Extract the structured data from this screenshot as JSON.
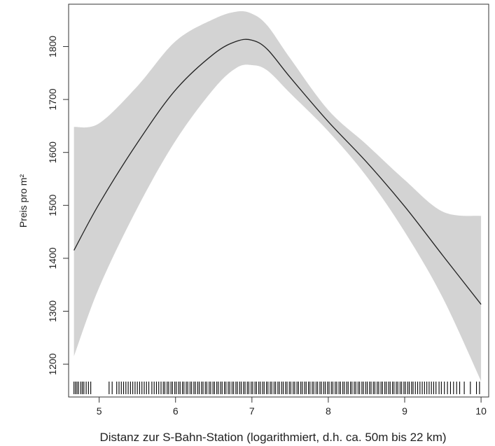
{
  "chart_data": {
    "type": "line",
    "title": "",
    "xlabel": "Distanz zur S-Bahn-Station (logarithmiert, d.h. ca. 50m bis 22 km)",
    "ylabel": "Preis pro m²",
    "xlim": [
      4.6,
      10.1
    ],
    "ylim": [
      1138,
      1880
    ],
    "x_ticks": [
      5,
      6,
      7,
      8,
      9,
      10
    ],
    "y_ticks": [
      1200,
      1300,
      1400,
      1500,
      1600,
      1700,
      1800
    ],
    "grid": false,
    "band_color": "#d3d3d3",
    "line_color": "#222222",
    "series": [
      {
        "x": [
          4.67,
          5.0,
          5.5,
          6.0,
          6.5,
          6.8,
          7.0,
          7.2,
          7.5,
          8.0,
          8.5,
          9.0,
          9.5,
          10.0
        ],
        "values": [
          1415,
          1503,
          1618,
          1718,
          1786,
          1810,
          1812,
          1795,
          1742,
          1658,
          1582,
          1498,
          1405,
          1313
        ],
        "lower": [
          1215,
          1345,
          1495,
          1622,
          1720,
          1760,
          1765,
          1755,
          1712,
          1640,
          1555,
          1450,
          1325,
          1168
        ],
        "upper": [
          1648,
          1655,
          1725,
          1810,
          1852,
          1866,
          1862,
          1840,
          1778,
          1680,
          1615,
          1548,
          1488,
          1480
        ]
      }
    ],
    "rug": [
      4.67,
      4.69,
      4.71,
      4.73,
      4.76,
      4.78,
      4.8,
      4.83,
      4.86,
      4.89,
      5.13,
      5.17,
      5.23,
      5.26,
      5.29,
      5.32,
      5.35,
      5.38,
      5.41,
      5.44,
      5.47,
      5.5,
      5.53,
      5.56,
      5.59,
      5.62,
      5.65,
      5.69,
      5.72,
      5.75,
      5.78,
      5.81,
      5.84,
      5.86,
      5.89,
      5.91,
      5.94,
      5.96,
      5.99,
      6.01,
      6.04,
      6.06,
      6.09,
      6.11,
      6.14,
      6.16,
      6.19,
      6.21,
      6.24,
      6.26,
      6.29,
      6.31,
      6.34,
      6.36,
      6.39,
      6.41,
      6.44,
      6.46,
      6.49,
      6.51,
      6.54,
      6.56,
      6.59,
      6.61,
      6.64,
      6.66,
      6.69,
      6.71,
      6.74,
      6.76,
      6.79,
      6.81,
      6.84,
      6.86,
      6.89,
      6.91,
      6.94,
      6.96,
      6.99,
      7.01,
      7.04,
      7.06,
      7.09,
      7.11,
      7.14,
      7.16,
      7.19,
      7.21,
      7.24,
      7.26,
      7.29,
      7.31,
      7.34,
      7.36,
      7.39,
      7.41,
      7.44,
      7.46,
      7.49,
      7.51,
      7.54,
      7.56,
      7.59,
      7.61,
      7.64,
      7.66,
      7.69,
      7.71,
      7.74,
      7.76,
      7.79,
      7.81,
      7.84,
      7.86,
      7.89,
      7.91,
      7.94,
      7.96,
      7.99,
      8.01,
      8.04,
      8.06,
      8.09,
      8.11,
      8.14,
      8.16,
      8.19,
      8.21,
      8.24,
      8.26,
      8.29,
      8.31,
      8.34,
      8.36,
      8.39,
      8.41,
      8.44,
      8.46,
      8.49,
      8.51,
      8.54,
      8.56,
      8.59,
      8.61,
      8.64,
      8.66,
      8.69,
      8.71,
      8.74,
      8.76,
      8.79,
      8.81,
      8.84,
      8.86,
      8.89,
      8.91,
      8.94,
      8.96,
      8.99,
      9.01,
      9.04,
      9.06,
      9.09,
      9.11,
      9.14,
      9.17,
      9.2,
      9.23,
      9.26,
      9.29,
      9.32,
      9.35,
      9.38,
      9.41,
      9.45,
      9.48,
      9.52,
      9.56,
      9.6,
      9.64,
      9.68,
      9.72,
      9.78,
      9.86,
      9.94,
      9.98
    ]
  }
}
